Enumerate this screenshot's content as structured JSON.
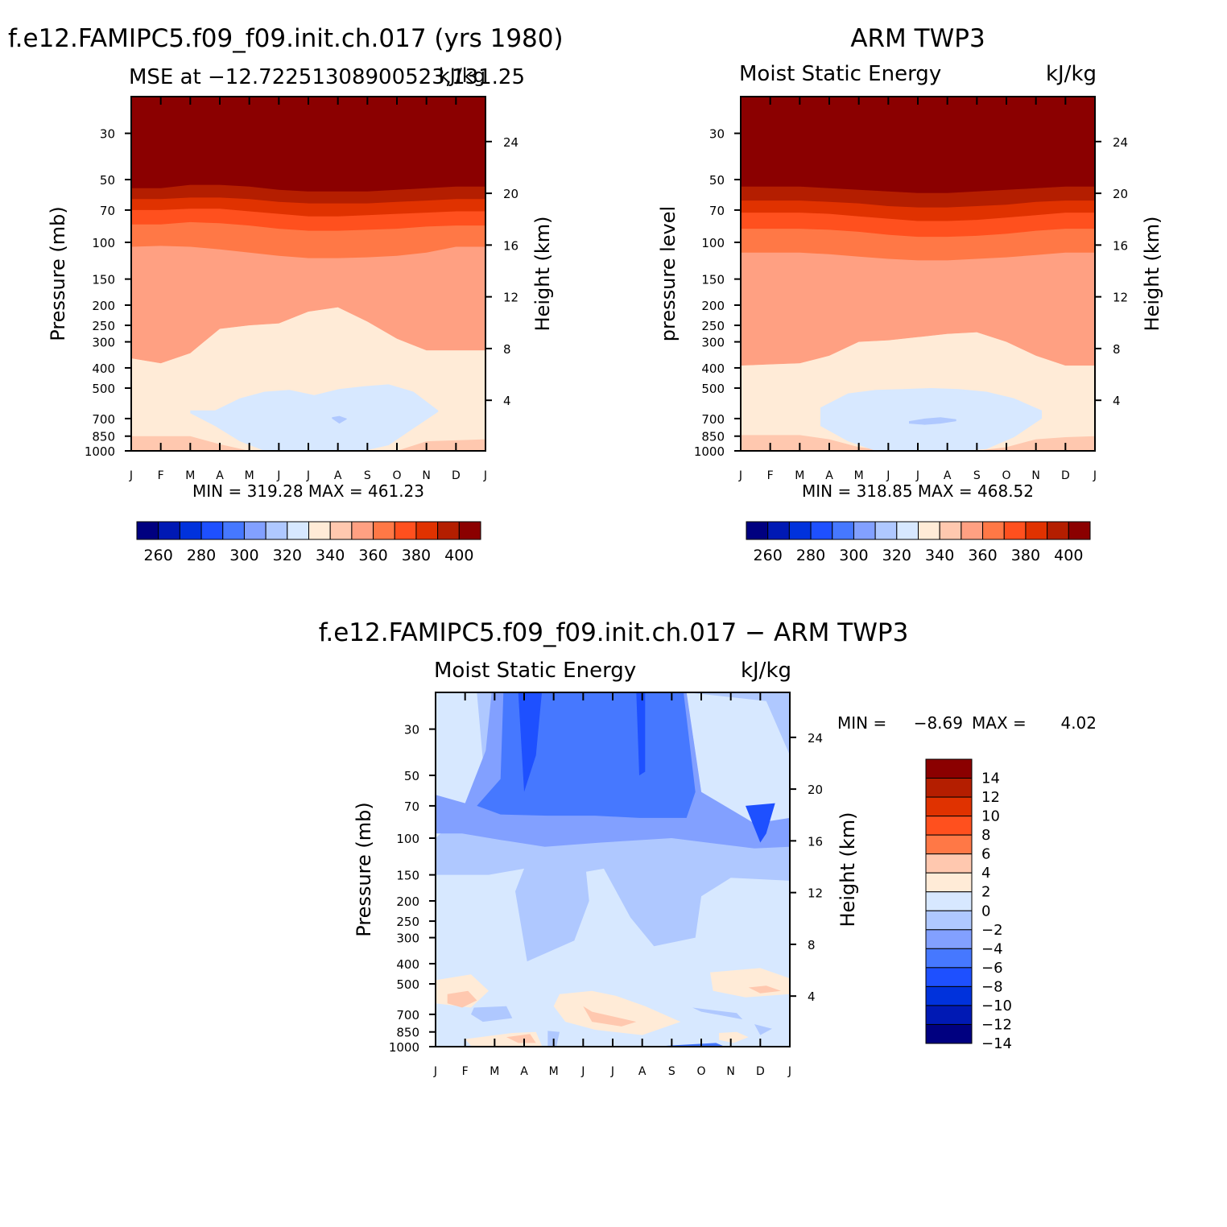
{
  "figure": {
    "panel_a_title": "f.e12.FAMIPC5.f09_f09.init.ch.017 (yrs 1980)",
    "panel_b_title": "ARM TWP3",
    "diff_title": "f.e12.FAMIPC5.f09_f09.init.ch.017 − ARM TWP3"
  },
  "colors": {
    "mse_levels": [
      "#000080",
      "#0019b4",
      "#0032dc",
      "#1e50ff",
      "#4678ff",
      "#82a0ff",
      "#afc8ff",
      "#d7e8ff",
      "#ffebd7",
      "#ffc8af",
      "#ffa082",
      "#ff7846",
      "#ff501e",
      "#e03200",
      "#b41e00",
      "#8b0000"
    ],
    "diff_levels": [
      "#000080",
      "#0019b4",
      "#0032dc",
      "#1e50ff",
      "#4678ff",
      "#82a0ff",
      "#afc8ff",
      "#d7e8ff",
      "#ffebd7",
      "#ffc8af",
      "#ff7846",
      "#ff501e",
      "#e03200",
      "#b41e00",
      "#8b0000"
    ]
  },
  "chart_data": [
    {
      "type": "heatmap",
      "id": "model",
      "title": "f.e12.FAMIPC5.f09_f09.init.ch.017 (yrs 1980)",
      "left_string": "MSE at −12.72251308900523,131.25",
      "right_string": "kJ/kg",
      "ylabel": "Pressure (mb)",
      "y2label": "Height (km)",
      "x_ticks": [
        "J",
        "F",
        "M",
        "A",
        "M",
        "J",
        "J",
        "A",
        "S",
        "O",
        "N",
        "D",
        "J"
      ],
      "y_ticks": [
        30,
        50,
        70,
        100,
        150,
        200,
        250,
        300,
        400,
        500,
        700,
        850,
        1000
      ],
      "y_log_scale": true,
      "y2_ticks": [
        24,
        20,
        16,
        12,
        8,
        4
      ],
      "stats": "MIN = 319.28 MAX = 461.23",
      "min": 319.28,
      "max": 461.23,
      "colorbar_labels": [
        "260",
        "280",
        "300",
        "320",
        "340",
        "360",
        "380",
        "400"
      ],
      "colorbar_levels": [
        250,
        260,
        270,
        280,
        290,
        300,
        310,
        320,
        330,
        340,
        350,
        360,
        370,
        380,
        390,
        400,
        410
      ],
      "fill_bounds_pressure_mb": {
        "above_400_top": [
          55,
          55,
          53,
          53,
          54,
          56,
          57,
          57,
          57,
          56,
          55,
          54,
          54
        ],
        "390_400": [
          62,
          62,
          61,
          61,
          62,
          64,
          65,
          65,
          65,
          64,
          63,
          62,
          62
        ],
        "380_390": [
          70,
          70,
          69,
          69,
          71,
          73,
          75,
          75,
          74,
          73,
          72,
          71,
          71
        ],
        "370_380": [
          82,
          82,
          80,
          81,
          83,
          86,
          88,
          88,
          87,
          86,
          84,
          83,
          83
        ],
        "360_370": [
          105,
          104,
          105,
          108,
          112,
          116,
          119,
          119,
          118,
          116,
          112,
          105,
          105
        ],
        "350_360": [
          360,
          380,
          340,
          260,
          250,
          245,
          215,
          205,
          240,
          290,
          330,
          330,
          330
        ],
        "340_350": [
          1000,
          1000,
          1000,
          1000,
          1000,
          1000,
          1000,
          1000,
          1000,
          1000,
          1000,
          1000,
          1000
        ]
      },
      "blue_patch_330_340": {
        "months": [
          "M",
          "A",
          "M",
          "J",
          "J",
          "A",
          "S",
          "O",
          "N"
        ],
        "top_mb": [
          850,
          640,
          550,
          555,
          540,
          500,
          505,
          560,
          660
        ],
        "bottom_mb": [
          1000,
          1000,
          1000,
          1000,
          1000,
          1000,
          1000,
          1000,
          1000
        ]
      }
    },
    {
      "type": "heatmap",
      "id": "obs",
      "title": "ARM TWP3",
      "left_string": "Moist Static Energy",
      "right_string": "kJ/kg",
      "ylabel": "pressure level",
      "y2label": "Height (km)",
      "x_ticks": [
        "J",
        "F",
        "M",
        "A",
        "M",
        "J",
        "J",
        "A",
        "S",
        "O",
        "N",
        "D",
        "J"
      ],
      "y_ticks": [
        30,
        50,
        70,
        100,
        150,
        200,
        250,
        300,
        400,
        500,
        700,
        850,
        1000
      ],
      "y_log_scale": true,
      "y2_ticks": [
        24,
        20,
        16,
        12,
        8,
        4
      ],
      "stats": "MIN = 318.85 MAX = 468.52",
      "min": 318.85,
      "max": 468.52,
      "colorbar_labels": [
        "260",
        "280",
        "300",
        "320",
        "340",
        "360",
        "380",
        "400"
      ],
      "colorbar_levels": [
        250,
        260,
        270,
        280,
        290,
        300,
        310,
        320,
        330,
        340,
        350,
        360,
        370,
        380,
        390,
        400,
        410
      ]
    },
    {
      "type": "heatmap",
      "id": "diff",
      "title": "f.e12.FAMIPC5.f09_f09.init.ch.017 − ARM TWP3",
      "left_string": "Moist Static Energy",
      "right_string": "kJ/kg",
      "ylabel": "Pressure (mb)",
      "y2label": "Height (km)",
      "x_ticks": [
        "J",
        "F",
        "M",
        "A",
        "M",
        "J",
        "J",
        "A",
        "S",
        "O",
        "N",
        "D",
        "J"
      ],
      "y_ticks": [
        30,
        50,
        70,
        100,
        150,
        200,
        250,
        300,
        400,
        500,
        700,
        850,
        1000
      ],
      "y_log_scale": true,
      "y2_ticks": [
        24,
        20,
        16,
        12,
        8,
        4
      ],
      "stats": {
        "min_label": "MIN =",
        "min": "−8.69",
        "max_label": "MAX =",
        "max": "4.02"
      },
      "colorbar_labels": [
        "14",
        "12",
        "10",
        "8",
        "6",
        "4",
        "2",
        "0",
        "−2",
        "−4",
        "−6",
        "−8",
        "−10",
        "−12",
        "−14"
      ],
      "colorbar_levels": [
        -16,
        -14,
        -12,
        -10,
        -8,
        -6,
        -4,
        -2,
        0,
        2,
        4,
        6,
        8,
        10,
        12,
        14,
        16
      ]
    }
  ]
}
